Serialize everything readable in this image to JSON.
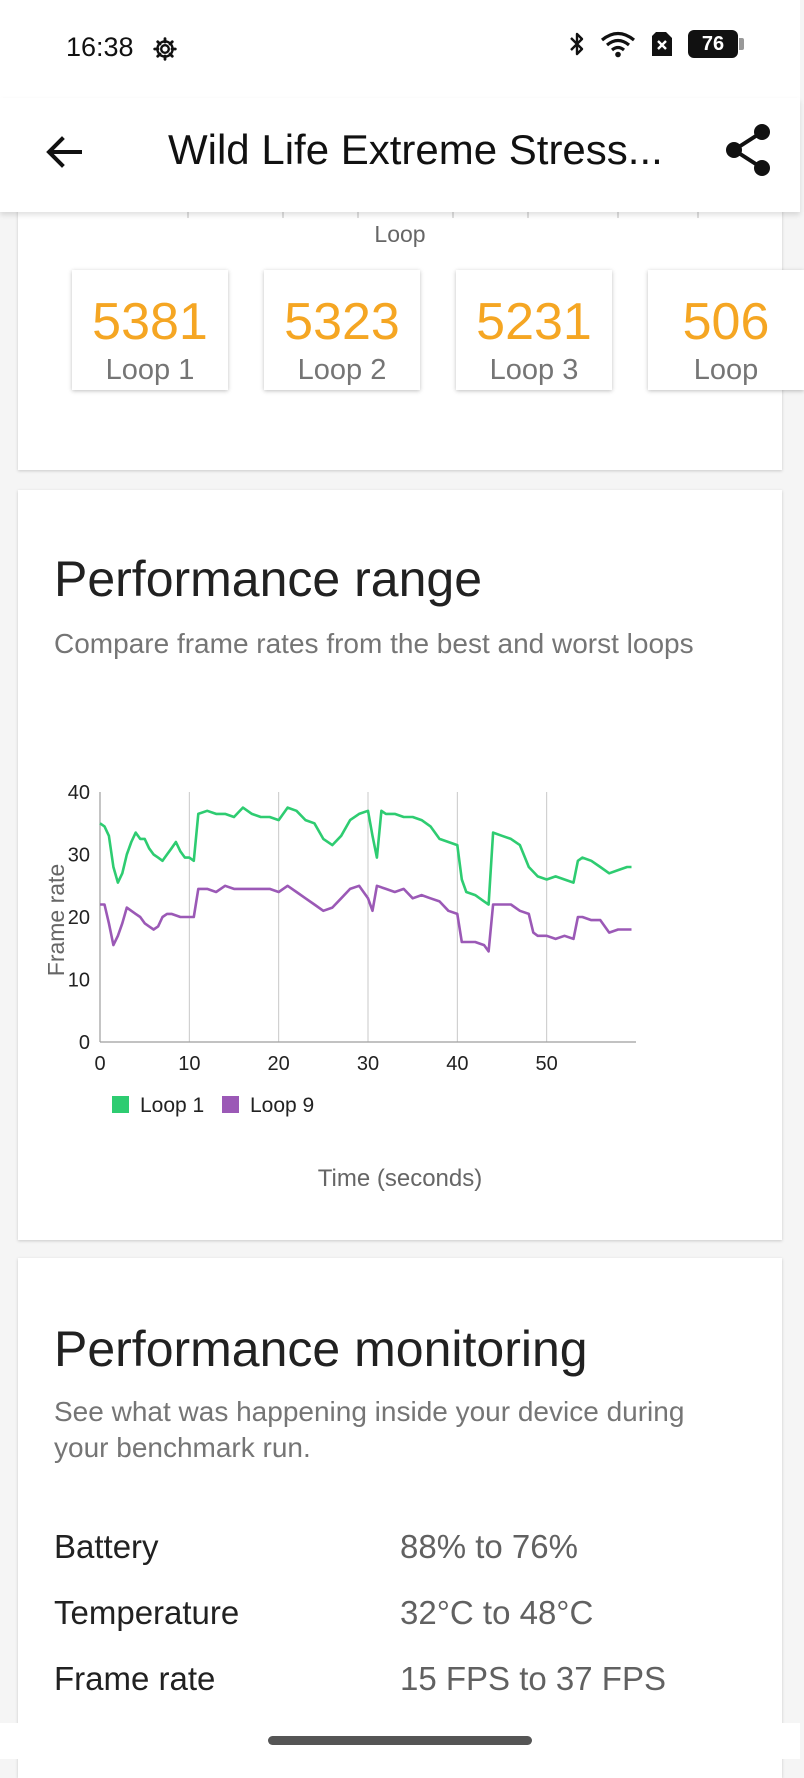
{
  "status_bar": {
    "time": "16:38",
    "battery": "76"
  },
  "app_bar": {
    "title": "Wild Life Extreme Stress..."
  },
  "loops_card": {
    "axis_label": "Loop",
    "tiles": [
      {
        "score": "5381",
        "label": "Loop 1"
      },
      {
        "score": "5323",
        "label": "Loop 2"
      },
      {
        "score": "5231",
        "label": "Loop 3"
      },
      {
        "score": "506",
        "label": "Loop"
      }
    ]
  },
  "performance_range": {
    "title": "Performance range",
    "subtitle": "Compare frame rates from the best and worst loops"
  },
  "chart_data": {
    "type": "line",
    "xlabel": "Time (seconds)",
    "ylabel": "Frame rate",
    "xlim": [
      0,
      60
    ],
    "ylim": [
      0,
      40
    ],
    "x_ticks": [
      0,
      10,
      20,
      30,
      40,
      50
    ],
    "y_ticks": [
      0,
      10,
      20,
      30,
      40
    ],
    "grid": "vertical",
    "legend": "bottom-left",
    "series": [
      {
        "name": "Loop 1",
        "color": "#2ecc71",
        "points": [
          [
            0,
            35
          ],
          [
            0.5,
            34.5
          ],
          [
            1,
            33
          ],
          [
            1.5,
            28
          ],
          [
            2,
            25.5
          ],
          [
            2.5,
            27
          ],
          [
            3,
            30
          ],
          [
            3.5,
            32
          ],
          [
            4,
            33.5
          ],
          [
            4.5,
            32.5
          ],
          [
            5,
            32.5
          ],
          [
            5.5,
            31
          ],
          [
            6,
            30
          ],
          [
            6.5,
            29.5
          ],
          [
            7,
            29
          ],
          [
            7.5,
            30
          ],
          [
            8,
            31
          ],
          [
            8.5,
            32
          ],
          [
            9,
            30.5
          ],
          [
            9.5,
            29.5
          ],
          [
            10,
            29.5
          ],
          [
            10.5,
            29
          ],
          [
            11,
            36.5
          ],
          [
            12,
            37
          ],
          [
            13,
            36.5
          ],
          [
            14,
            36.5
          ],
          [
            15,
            36
          ],
          [
            16,
            37.5
          ],
          [
            17,
            36.5
          ],
          [
            18,
            36
          ],
          [
            19,
            36
          ],
          [
            20,
            35.5
          ],
          [
            21,
            37.5
          ],
          [
            22,
            37
          ],
          [
            23,
            35.5
          ],
          [
            24,
            35
          ],
          [
            25,
            32.5
          ],
          [
            26,
            31.5
          ],
          [
            27,
            33
          ],
          [
            28,
            35.5
          ],
          [
            29,
            36.5
          ],
          [
            30,
            37
          ],
          [
            30.5,
            33
          ],
          [
            31,
            29.5
          ],
          [
            31.5,
            37
          ],
          [
            32,
            36.5
          ],
          [
            33,
            36.5
          ],
          [
            34,
            36
          ],
          [
            35,
            36
          ],
          [
            36,
            35.5
          ],
          [
            37,
            34.5
          ],
          [
            38,
            32.5
          ],
          [
            39,
            32
          ],
          [
            40,
            31.5
          ],
          [
            40.5,
            26
          ],
          [
            41,
            24
          ],
          [
            42,
            23.5
          ],
          [
            43,
            22.5
          ],
          [
            43.5,
            22
          ],
          [
            44,
            33.5
          ],
          [
            45,
            33
          ],
          [
            46,
            32.5
          ],
          [
            47,
            31.5
          ],
          [
            48,
            28
          ],
          [
            49,
            26.5
          ],
          [
            50,
            26
          ],
          [
            51,
            26.5
          ],
          [
            52,
            26
          ],
          [
            53,
            25.5
          ],
          [
            53.5,
            29
          ],
          [
            54,
            29.5
          ],
          [
            55,
            29
          ],
          [
            56,
            28
          ],
          [
            57,
            27
          ],
          [
            58,
            27.5
          ],
          [
            59,
            28
          ],
          [
            59.5,
            28
          ]
        ]
      },
      {
        "name": "Loop 9",
        "color": "#9b59b6",
        "points": [
          [
            0,
            22
          ],
          [
            0.5,
            22
          ],
          [
            1,
            19
          ],
          [
            1.5,
            15.5
          ],
          [
            2,
            17
          ],
          [
            2.5,
            19
          ],
          [
            3,
            21.5
          ],
          [
            3.5,
            21
          ],
          [
            4,
            20.5
          ],
          [
            4.5,
            20
          ],
          [
            5,
            19
          ],
          [
            5.5,
            18.5
          ],
          [
            6,
            18
          ],
          [
            6.5,
            18.5
          ],
          [
            7,
            20
          ],
          [
            7.5,
            20.5
          ],
          [
            8,
            20.5
          ],
          [
            9,
            20
          ],
          [
            10,
            20
          ],
          [
            10.5,
            20
          ],
          [
            11,
            24.5
          ],
          [
            12,
            24.5
          ],
          [
            13,
            24
          ],
          [
            14,
            25
          ],
          [
            15,
            24.5
          ],
          [
            16,
            24.5
          ],
          [
            17,
            24.5
          ],
          [
            18,
            24.5
          ],
          [
            19,
            24.5
          ],
          [
            20,
            24
          ],
          [
            21,
            25
          ],
          [
            22,
            24
          ],
          [
            23,
            23
          ],
          [
            24,
            22
          ],
          [
            25,
            21
          ],
          [
            26,
            21.5
          ],
          [
            27,
            23
          ],
          [
            28,
            24.5
          ],
          [
            29,
            25
          ],
          [
            30,
            23
          ],
          [
            30.5,
            21
          ],
          [
            31,
            25
          ],
          [
            32,
            24.5
          ],
          [
            33,
            24
          ],
          [
            34,
            24.5
          ],
          [
            35,
            23
          ],
          [
            36,
            23.5
          ],
          [
            37,
            23
          ],
          [
            38,
            22.5
          ],
          [
            39,
            21
          ],
          [
            40,
            20.5
          ],
          [
            40.5,
            16
          ],
          [
            41,
            16
          ],
          [
            42,
            16
          ],
          [
            43,
            15.5
          ],
          [
            43.5,
            14.5
          ],
          [
            44,
            22
          ],
          [
            45,
            22
          ],
          [
            46,
            22
          ],
          [
            47,
            21
          ],
          [
            48,
            20.5
          ],
          [
            48.5,
            17.5
          ],
          [
            49,
            17
          ],
          [
            50,
            17
          ],
          [
            51,
            16.5
          ],
          [
            52,
            17
          ],
          [
            53,
            16.5
          ],
          [
            53.5,
            20
          ],
          [
            54,
            20
          ],
          [
            55,
            19.5
          ],
          [
            56,
            19.5
          ],
          [
            57,
            17.5
          ],
          [
            58,
            18
          ],
          [
            59,
            18
          ],
          [
            59.5,
            18
          ]
        ]
      }
    ]
  },
  "performance_monitoring": {
    "title": "Performance monitoring",
    "subtitle": "See what was happening inside your device during your benchmark run.",
    "rows": [
      {
        "label": "Battery",
        "value": "88% to 76%"
      },
      {
        "label": "Temperature",
        "value": "32°C to 48°C"
      },
      {
        "label": "Frame rate",
        "value": "15 FPS to 37 FPS"
      }
    ]
  }
}
